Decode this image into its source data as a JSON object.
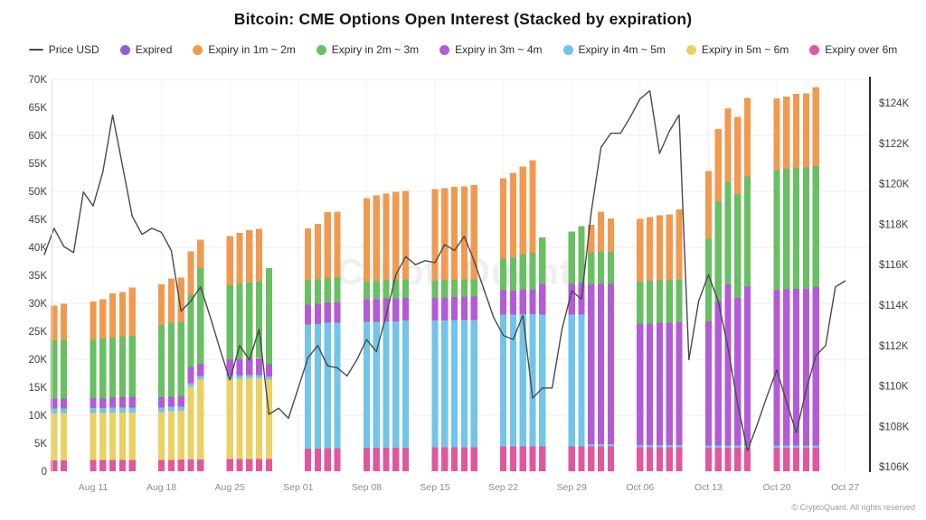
{
  "title": "Bitcoin: CME Options Open Interest (Stacked by expiration)",
  "watermark": "CryptoQuant",
  "attribution": "© CryptoQuant. All rights reserved",
  "legend": [
    {
      "label": "Price USD",
      "key": "price_line",
      "type": "line"
    },
    {
      "label": "Expired",
      "key": "expired",
      "type": "dot"
    },
    {
      "label": "Expiry in 1m ~ 2m",
      "key": "e1_2m",
      "type": "dot"
    },
    {
      "label": "Expiry in 2m ~ 3m",
      "key": "e2_3m",
      "type": "dot"
    },
    {
      "label": "Expiry in 3m ~ 4m",
      "key": "e3_4m",
      "type": "dot"
    },
    {
      "label": "Expiry in 4m ~ 5m",
      "key": "e4_5m",
      "type": "dot"
    },
    {
      "label": "Expiry in 5m ~ 6m",
      "key": "e5_6m",
      "type": "dot"
    },
    {
      "label": "Expiry over 6m",
      "key": "over_6m",
      "type": "dot"
    }
  ],
  "chart_data": {
    "type": "bar",
    "stacked": true,
    "overlay_line_name": "Price USD",
    "title": "Bitcoin: CME Options Open Interest (Stacked by expiration)",
    "units": {
      "bars": "contracts (thousands)",
      "line": "USD (thousands)"
    },
    "colors": {
      "price_line": "#4a4a4a",
      "expired": "#8d61d0",
      "e1_2m": "#f09a51",
      "e2_3m": "#69bf63",
      "e3_4m": "#b35bd6",
      "e4_5m": "#72c4e9",
      "e5_6m": "#e9d164",
      "over_6m": "#e0589b"
    },
    "left_axis": {
      "min": 0,
      "max": 70,
      "ticks": [
        {
          "label": "0",
          "v": 0
        },
        {
          "label": "5K",
          "v": 5
        },
        {
          "label": "10K",
          "v": 10
        },
        {
          "label": "15K",
          "v": 15
        },
        {
          "label": "20K",
          "v": 20
        },
        {
          "label": "25K",
          "v": 25
        },
        {
          "label": "30K",
          "v": 30
        },
        {
          "label": "35K",
          "v": 35
        },
        {
          "label": "40K",
          "v": 40
        },
        {
          "label": "45K",
          "v": 45
        },
        {
          "label": "50K",
          "v": 50
        },
        {
          "label": "55K",
          "v": 55
        },
        {
          "label": "60K",
          "v": 60
        },
        {
          "label": "65K",
          "v": 65
        },
        {
          "label": "70K",
          "v": 70
        }
      ]
    },
    "right_axis": {
      "min": 106,
      "max": 124,
      "ticks": [
        {
          "label": "$106K",
          "v": 106
        },
        {
          "label": "$108K",
          "v": 108
        },
        {
          "label": "$110K",
          "v": 110
        },
        {
          "label": "$112K",
          "v": 112
        },
        {
          "label": "$114K",
          "v": 114
        },
        {
          "label": "$116K",
          "v": 116
        },
        {
          "label": "$118K",
          "v": 118
        },
        {
          "label": "$120K",
          "v": 120
        },
        {
          "label": "$122K",
          "v": 122
        },
        {
          "label": "$124K",
          "v": 124
        }
      ]
    },
    "x_labels": [
      {
        "label": "Aug 11",
        "i": 5
      },
      {
        "label": "Aug 18",
        "i": 12
      },
      {
        "label": "Aug 25",
        "i": 19
      },
      {
        "label": "Sep 01",
        "i": 26
      },
      {
        "label": "Sep 08",
        "i": 33
      },
      {
        "label": "Sep 15",
        "i": 40
      },
      {
        "label": "Sep 22",
        "i": 47
      },
      {
        "label": "Sep 29",
        "i": 54
      },
      {
        "label": "Oct 06",
        "i": 61
      },
      {
        "label": "Oct 13",
        "i": 68
      },
      {
        "label": "Oct 20",
        "i": 75
      },
      {
        "label": "Oct 27",
        "i": 82
      }
    ],
    "stack_order_bottom_to_top": [
      "over_6m",
      "e5_6m",
      "e4_5m",
      "e3_4m",
      "e2_3m",
      "e1_2m",
      "expired"
    ],
    "bars": [
      {
        "d": "Aug 07",
        "i": 1,
        "v": [
          1.9,
          8.5,
          0.8,
          1.8,
          10.4,
          6.2,
          0
        ]
      },
      {
        "d": "Aug 08",
        "i": 2,
        "v": [
          1.9,
          8.5,
          0.8,
          1.8,
          10.5,
          6.4,
          0
        ]
      },
      {
        "d": "Aug 11",
        "i": 5,
        "v": [
          2.0,
          8.4,
          0.9,
          1.8,
          10.5,
          6.7,
          0
        ]
      },
      {
        "d": "Aug 12",
        "i": 6,
        "v": [
          2.0,
          8.4,
          0.9,
          1.8,
          10.6,
          7.0,
          0
        ]
      },
      {
        "d": "Aug 13",
        "i": 7,
        "v": [
          2.0,
          8.5,
          0.9,
          1.8,
          10.7,
          7.9,
          0
        ]
      },
      {
        "d": "Aug 14",
        "i": 8,
        "v": [
          2.0,
          8.5,
          0.9,
          1.9,
          10.8,
          7.9,
          0
        ]
      },
      {
        "d": "Aug 15",
        "i": 9,
        "v": [
          2.0,
          8.5,
          0.9,
          1.9,
          10.9,
          8.6,
          0
        ]
      },
      {
        "d": "Aug 18",
        "i": 12,
        "v": [
          2.0,
          8.6,
          0.8,
          1.8,
          12.9,
          7.3,
          0
        ]
      },
      {
        "d": "Aug 19",
        "i": 13,
        "v": [
          2.0,
          8.7,
          0.8,
          1.8,
          13.2,
          7.9,
          0
        ]
      },
      {
        "d": "Aug 20",
        "i": 14,
        "v": [
          2.1,
          8.7,
          0.7,
          1.9,
          13.3,
          7.9,
          0
        ]
      },
      {
        "d": "Aug 21",
        "i": 15,
        "v": [
          2.1,
          13.0,
          0.6,
          2.9,
          12.9,
          7.8,
          0
        ]
      },
      {
        "d": "Aug 22",
        "i": 16,
        "v": [
          2.1,
          14.3,
          0.6,
          2.2,
          17.1,
          5.1,
          0
        ]
      },
      {
        "d": "Aug 25",
        "i": 19,
        "v": [
          2.2,
          14.3,
          0.6,
          2.9,
          13.3,
          8.7,
          0
        ]
      },
      {
        "d": "Aug 26",
        "i": 20,
        "v": [
          2.2,
          14.3,
          0.6,
          2.9,
          13.5,
          9.1,
          0
        ]
      },
      {
        "d": "Aug 27",
        "i": 21,
        "v": [
          2.2,
          14.4,
          0.6,
          2.9,
          13.6,
          9.4,
          0
        ]
      },
      {
        "d": "Aug 28",
        "i": 22,
        "v": [
          2.2,
          14.4,
          0.6,
          3.0,
          13.7,
          9.4,
          0
        ]
      },
      {
        "d": "Aug 29",
        "i": 23,
        "v": [
          2.2,
          14.2,
          0.5,
          2.2,
          17.2,
          0,
          0
        ]
      },
      {
        "d": "Sep 02",
        "i": 27,
        "v": [
          4.0,
          0,
          22.2,
          3.6,
          4.3,
          9.3,
          0
        ]
      },
      {
        "d": "Sep 03",
        "i": 28,
        "v": [
          4.0,
          0,
          22.3,
          3.6,
          4.4,
          9.9,
          0
        ]
      },
      {
        "d": "Sep 04",
        "i": 29,
        "v": [
          4.1,
          0,
          22.4,
          3.7,
          4.4,
          11.7,
          0
        ]
      },
      {
        "d": "Sep 05",
        "i": 30,
        "v": [
          4.1,
          0,
          22.4,
          3.7,
          4.5,
          11.7,
          0
        ]
      },
      {
        "d": "Sep 08",
        "i": 33,
        "v": [
          4.2,
          0,
          22.5,
          4.0,
          3.2,
          14.9,
          0
        ]
      },
      {
        "d": "Sep 09",
        "i": 34,
        "v": [
          4.2,
          0,
          22.5,
          4.0,
          3.3,
          15.3,
          0
        ]
      },
      {
        "d": "Sep 10",
        "i": 35,
        "v": [
          4.2,
          0,
          22.6,
          4.1,
          3.3,
          15.4,
          0
        ]
      },
      {
        "d": "Sep 11",
        "i": 36,
        "v": [
          4.2,
          0,
          22.6,
          4.1,
          3.3,
          15.7,
          0
        ]
      },
      {
        "d": "Sep 12",
        "i": 37,
        "v": [
          4.2,
          0,
          22.7,
          4.1,
          3.3,
          15.8,
          0
        ]
      },
      {
        "d": "Sep 15",
        "i": 40,
        "v": [
          4.3,
          0,
          22.6,
          4.1,
          3.0,
          16.4,
          0
        ]
      },
      {
        "d": "Sep 16",
        "i": 41,
        "v": [
          4.3,
          0,
          22.6,
          4.1,
          3.1,
          16.5,
          0
        ]
      },
      {
        "d": "Sep 17",
        "i": 42,
        "v": [
          4.3,
          0,
          22.7,
          4.1,
          3.1,
          16.6,
          0
        ]
      },
      {
        "d": "Sep 18",
        "i": 43,
        "v": [
          4.3,
          0,
          22.7,
          4.2,
          3.1,
          16.6,
          0
        ]
      },
      {
        "d": "Sep 19",
        "i": 44,
        "v": [
          4.3,
          0,
          22.7,
          4.2,
          3.1,
          16.8,
          0
        ]
      },
      {
        "d": "Sep 22",
        "i": 47,
        "v": [
          4.4,
          0,
          23.6,
          4.3,
          5.7,
          14.3,
          0
        ]
      },
      {
        "d": "Sep 23",
        "i": 48,
        "v": [
          4.4,
          0,
          23.6,
          4.3,
          5.9,
          15.1,
          0
        ]
      },
      {
        "d": "Sep 24",
        "i": 49,
        "v": [
          4.4,
          0,
          23.7,
          4.3,
          6.4,
          15.6,
          0
        ]
      },
      {
        "d": "Sep 25",
        "i": 50,
        "v": [
          4.4,
          0,
          23.7,
          4.4,
          6.5,
          16.6,
          0
        ]
      },
      {
        "d": "Sep 26",
        "i": 51,
        "v": [
          4.4,
          0,
          23.6,
          5.5,
          8.3,
          0,
          0
        ]
      },
      {
        "d": "Sep 29",
        "i": 54,
        "v": [
          4.4,
          0,
          23.6,
          5.5,
          9.3,
          0,
          0
        ]
      },
      {
        "d": "Sep 30",
        "i": 55,
        "v": [
          4.4,
          0,
          23.6,
          5.6,
          10.2,
          0,
          0
        ]
      },
      {
        "d": "Oct 01",
        "i": 56,
        "v": [
          4.4,
          0,
          0.4,
          28.6,
          5.6,
          5.0,
          0
        ]
      },
      {
        "d": "Oct 02",
        "i": 57,
        "v": [
          4.4,
          0,
          0.4,
          28.7,
          5.7,
          7.2,
          0
        ]
      },
      {
        "d": "Oct 03",
        "i": 58,
        "v": [
          4.4,
          0,
          0.4,
          28.7,
          5.7,
          6.0,
          0
        ]
      },
      {
        "d": "Oct 06",
        "i": 61,
        "v": [
          4.3,
          0,
          0.4,
          21.7,
          7.5,
          11.2,
          0
        ]
      },
      {
        "d": "Oct 07",
        "i": 62,
        "v": [
          4.3,
          0,
          0.4,
          21.7,
          7.6,
          11.4,
          0
        ]
      },
      {
        "d": "Oct 08",
        "i": 63,
        "v": [
          4.3,
          0,
          0.4,
          21.8,
          7.6,
          11.6,
          0
        ]
      },
      {
        "d": "Oct 09",
        "i": 64,
        "v": [
          4.3,
          0,
          0.4,
          21.8,
          7.6,
          11.8,
          0
        ]
      },
      {
        "d": "Oct 10",
        "i": 65,
        "v": [
          4.3,
          0,
          0.4,
          21.9,
          7.7,
          12.5,
          0
        ]
      },
      {
        "d": "Oct 13",
        "i": 68,
        "v": [
          4.2,
          0,
          0.4,
          22.2,
          14.7,
          12.1,
          0
        ]
      },
      {
        "d": "Oct 14",
        "i": 69,
        "v": [
          4.2,
          0,
          0.4,
          25.8,
          17.8,
          12.9,
          0
        ]
      },
      {
        "d": "Oct 15",
        "i": 70,
        "v": [
          4.2,
          0,
          0.4,
          28.8,
          18.3,
          13.1,
          0
        ]
      },
      {
        "d": "Oct 16",
        "i": 71,
        "v": [
          4.2,
          0,
          0.4,
          26.4,
          18.5,
          13.8,
          0
        ]
      },
      {
        "d": "Oct 17",
        "i": 72,
        "v": [
          4.2,
          0,
          0.4,
          28.5,
          19.6,
          14.0,
          0
        ]
      },
      {
        "d": "Oct 20",
        "i": 75,
        "v": [
          4.2,
          0,
          0.4,
          27.7,
          21.5,
          12.8,
          0
        ]
      },
      {
        "d": "Oct 21",
        "i": 76,
        "v": [
          4.2,
          0,
          0.4,
          27.9,
          21.5,
          12.9,
          0
        ]
      },
      {
        "d": "Oct 22",
        "i": 77,
        "v": [
          4.2,
          0,
          0.4,
          28.0,
          21.6,
          13.2,
          0
        ]
      },
      {
        "d": "Oct 23",
        "i": 78,
        "v": [
          4.2,
          0,
          0.4,
          28.0,
          21.7,
          13.2,
          0
        ]
      },
      {
        "d": "Oct 24",
        "i": 79,
        "v": [
          4.2,
          0,
          0.4,
          28.3,
          21.6,
          14.1,
          0
        ]
      }
    ],
    "price_line": {
      "start_date": "Aug 06",
      "end_date": "Oct 27",
      "points": [
        [
          "Aug 06",
          116.5
        ],
        [
          "Aug 07",
          117.8
        ],
        [
          "Aug 08",
          116.9
        ],
        [
          "Aug 09",
          116.6
        ],
        [
          "Aug 10",
          119.6
        ],
        [
          "Aug 11",
          118.9
        ],
        [
          "Aug 12",
          120.6
        ],
        [
          "Aug 13",
          123.4
        ],
        [
          "Aug 14",
          120.9
        ],
        [
          "Aug 15",
          118.4
        ],
        [
          "Aug 16",
          117.5
        ],
        [
          "Aug 17",
          117.8
        ],
        [
          "Aug 18",
          117.6
        ],
        [
          "Aug 19",
          116.7
        ],
        [
          "Aug 20",
          113.7
        ],
        [
          "Aug 21",
          114.2
        ],
        [
          "Aug 22",
          114.9
        ],
        [
          "Aug 23",
          113.4
        ],
        [
          "Aug 24",
          111.8
        ],
        [
          "Aug 25",
          110.3
        ],
        [
          "Aug 26",
          112.0
        ],
        [
          "Aug 27",
          111.3
        ],
        [
          "Aug 28",
          112.8
        ],
        [
          "Aug 29",
          108.6
        ],
        [
          "Aug 30",
          108.9
        ],
        [
          "Aug 31",
          108.4
        ],
        [
          "Sep 01",
          109.9
        ],
        [
          "Sep 02",
          111.4
        ],
        [
          "Sep 03",
          112.0
        ],
        [
          "Sep 04",
          111.0
        ],
        [
          "Sep 05",
          110.9
        ],
        [
          "Sep 06",
          110.5
        ],
        [
          "Sep 07",
          111.3
        ],
        [
          "Sep 08",
          112.3
        ],
        [
          "Sep 09",
          111.7
        ],
        [
          "Sep 10",
          113.5
        ],
        [
          "Sep 11",
          115.5
        ],
        [
          "Sep 12",
          116.4
        ],
        [
          "Sep 13",
          116.0
        ],
        [
          "Sep 14",
          116.2
        ],
        [
          "Sep 15",
          116.1
        ],
        [
          "Sep 16",
          117.0
        ],
        [
          "Sep 17",
          116.7
        ],
        [
          "Sep 18",
          117.4
        ],
        [
          "Sep 19",
          116.2
        ],
        [
          "Sep 20",
          114.8
        ],
        [
          "Sep 21",
          113.4
        ],
        [
          "Sep 22",
          112.5
        ],
        [
          "Sep 23",
          112.3
        ],
        [
          "Sep 24",
          113.5
        ],
        [
          "Sep 25",
          109.4
        ],
        [
          "Sep 26",
          109.9
        ],
        [
          "Sep 27",
          109.9
        ],
        [
          "Sep 28",
          112.8
        ],
        [
          "Sep 29",
          114.7
        ],
        [
          "Sep 30",
          114.3
        ],
        [
          "Oct 01",
          118.6
        ],
        [
          "Oct 02",
          121.8
        ],
        [
          "Oct 03",
          122.5
        ],
        [
          "Oct 04",
          122.5
        ],
        [
          "Oct 05",
          123.3
        ],
        [
          "Oct 06",
          124.2
        ],
        [
          "Oct 07",
          124.6
        ],
        [
          "Oct 08",
          121.5
        ],
        [
          "Oct 09",
          122.6
        ],
        [
          "Oct 10",
          123.4
        ],
        [
          "Oct 11",
          111.3
        ],
        [
          "Oct 12",
          114.2
        ],
        [
          "Oct 13",
          115.5
        ],
        [
          "Oct 14",
          114.2
        ],
        [
          "Oct 15",
          111.9
        ],
        [
          "Oct 16",
          109.1
        ],
        [
          "Oct 17",
          106.8
        ],
        [
          "Oct 18",
          108.1
        ],
        [
          "Oct 19",
          109.5
        ],
        [
          "Oct 20",
          110.8
        ],
        [
          "Oct 21",
          109.2
        ],
        [
          "Oct 22",
          107.7
        ],
        [
          "Oct 23",
          109.8
        ],
        [
          "Oct 24",
          111.5
        ],
        [
          "Oct 25",
          112.0
        ],
        [
          "Oct 26",
          114.9
        ],
        [
          "Oct 27",
          115.2
        ]
      ]
    }
  }
}
